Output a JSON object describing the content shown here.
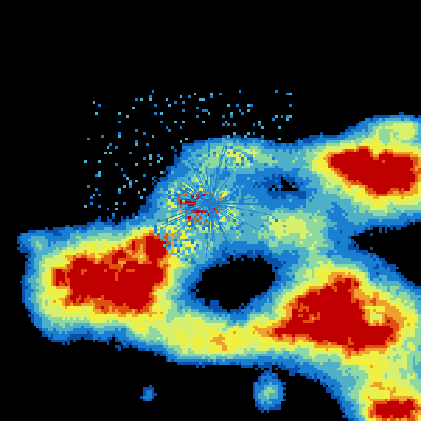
{
  "image": {
    "kind": "weather radar reflectivity",
    "background_color": "#000000",
    "palette": [
      "#0a4fa8",
      "#1a7fd0",
      "#4fb0c8",
      "#8fd8a0",
      "#d8f070",
      "#f0f040",
      "#f0a030",
      "#e05010",
      "#c00000"
    ]
  }
}
